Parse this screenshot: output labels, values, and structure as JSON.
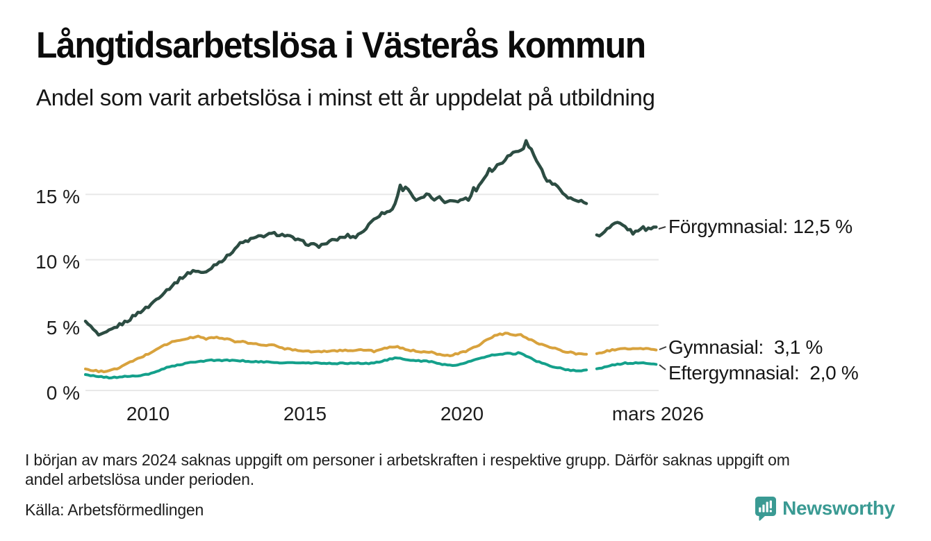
{
  "header": {
    "title": "Långtidsarbetslösa i Västerås kommun",
    "subtitle": "Andel som varit arbetslösa i minst ett år uppdelat på utbildning"
  },
  "chart_data": {
    "type": "line",
    "title": "Långtidsarbetslösa i Västerås kommun",
    "subtitle": "Andel som varit arbetslösa i minst ett år uppdelat på utbildning",
    "unit": "%",
    "x_domain": [
      2008.0,
      2026.25
    ],
    "y_domain": [
      0,
      20
    ],
    "grid": true,
    "legend_position": "right-end-labels",
    "y_ticks": [
      {
        "value": 0,
        "label": "0 %"
      },
      {
        "value": 5,
        "label": "5 %"
      },
      {
        "value": 10,
        "label": "10 %"
      },
      {
        "value": 15,
        "label": "15 %"
      }
    ],
    "x_ticks": [
      {
        "value": 2010,
        "label": "2010"
      },
      {
        "value": 2015,
        "label": "2015"
      },
      {
        "value": 2020,
        "label": "2020"
      },
      {
        "value": 2026.17,
        "label": "mars 2026"
      }
    ],
    "data_gap": {
      "from": 2024.0,
      "to": 2024.28,
      "note": "uppgift saknas från början av mars 2024"
    },
    "series": [
      {
        "name": "Förgymnasial",
        "color": "#2c4c42",
        "last_value": 12.5,
        "value_label": "Förgymnasial: 12,5 %",
        "segments": [
          [
            [
              2008.0,
              5.3
            ],
            [
              2008.17,
              4.85
            ],
            [
              2008.45,
              4.15
            ],
            [
              2008.7,
              4.45
            ],
            [
              2009.0,
              4.9
            ],
            [
              2009.35,
              5.35
            ],
            [
              2009.65,
              5.9
            ],
            [
              2010.0,
              6.4
            ],
            [
              2010.4,
              7.3
            ],
            [
              2010.75,
              8.0
            ],
            [
              2011.1,
              8.7
            ],
            [
              2011.45,
              9.2
            ],
            [
              2011.8,
              8.95
            ],
            [
              2012.15,
              9.7
            ],
            [
              2012.45,
              10.1
            ],
            [
              2012.9,
              11.2
            ],
            [
              2013.25,
              11.55
            ],
            [
              2013.6,
              11.8
            ],
            [
              2014.0,
              12.0
            ],
            [
              2014.4,
              11.85
            ],
            [
              2014.75,
              11.5
            ],
            [
              2015.1,
              11.2
            ],
            [
              2015.45,
              11.05
            ],
            [
              2015.8,
              11.4
            ],
            [
              2016.05,
              11.6
            ],
            [
              2016.35,
              11.85
            ],
            [
              2016.55,
              11.7
            ],
            [
              2016.9,
              12.3
            ],
            [
              2017.2,
              13.2
            ],
            [
              2017.5,
              13.6
            ],
            [
              2017.75,
              13.75
            ],
            [
              2017.92,
              14.7
            ],
            [
              2018.0,
              15.7
            ],
            [
              2018.12,
              15.35
            ],
            [
              2018.25,
              15.6
            ],
            [
              2018.42,
              14.85
            ],
            [
              2018.55,
              14.5
            ],
            [
              2018.72,
              14.7
            ],
            [
              2018.88,
              15.0
            ],
            [
              2019.0,
              14.75
            ],
            [
              2019.15,
              14.6
            ],
            [
              2019.3,
              14.75
            ],
            [
              2019.45,
              14.4
            ],
            [
              2019.6,
              14.65
            ],
            [
              2019.75,
              14.4
            ],
            [
              2019.9,
              14.5
            ],
            [
              2020.05,
              14.75
            ],
            [
              2020.15,
              14.55
            ],
            [
              2020.28,
              14.9
            ],
            [
              2020.35,
              15.55
            ],
            [
              2020.44,
              15.3
            ],
            [
              2020.52,
              15.7
            ],
            [
              2020.62,
              16.0
            ],
            [
              2020.72,
              16.35
            ],
            [
              2020.85,
              16.95
            ],
            [
              2020.95,
              16.8
            ],
            [
              2021.1,
              17.2
            ],
            [
              2021.25,
              17.45
            ],
            [
              2021.4,
              17.8
            ],
            [
              2021.55,
              18.1
            ],
            [
              2021.7,
              18.3
            ],
            [
              2021.85,
              18.45
            ],
            [
              2021.95,
              18.6
            ],
            [
              2022.02,
              19.1
            ],
            [
              2022.1,
              18.7
            ],
            [
              2022.2,
              18.4
            ],
            [
              2022.3,
              17.9
            ],
            [
              2022.42,
              17.35
            ],
            [
              2022.52,
              16.9
            ],
            [
              2022.65,
              16.2
            ],
            [
              2022.8,
              15.9
            ],
            [
              2022.95,
              15.7
            ],
            [
              2023.05,
              15.6
            ],
            [
              2023.15,
              15.4
            ],
            [
              2023.27,
              14.9
            ],
            [
              2023.4,
              14.7
            ],
            [
              2023.55,
              14.6
            ],
            [
              2023.7,
              14.5
            ],
            [
              2023.85,
              14.4
            ],
            [
              2023.95,
              14.3
            ]
          ],
          [
            [
              2024.28,
              11.9
            ],
            [
              2024.4,
              11.78
            ],
            [
              2024.6,
              12.3
            ],
            [
              2024.92,
              12.8
            ],
            [
              2025.19,
              12.5
            ],
            [
              2025.46,
              12.0
            ],
            [
              2025.7,
              12.5
            ],
            [
              2025.85,
              12.3
            ],
            [
              2026.05,
              12.5
            ],
            [
              2026.17,
              12.5
            ]
          ]
        ]
      },
      {
        "name": "Gymnasial",
        "color": "#d8a23d",
        "last_value": 3.1,
        "value_label": "Gymnasial:  3,1 %",
        "segments": [
          [
            [
              2008.0,
              1.65
            ],
            [
              2008.2,
              1.55
            ],
            [
              2008.45,
              1.45
            ],
            [
              2008.7,
              1.5
            ],
            [
              2009.0,
              1.65
            ],
            [
              2009.2,
              1.9
            ],
            [
              2009.55,
              2.3
            ],
            [
              2010.0,
              2.8
            ],
            [
              2010.4,
              3.35
            ],
            [
              2010.75,
              3.7
            ],
            [
              2011.1,
              3.9
            ],
            [
              2011.4,
              4.05
            ],
            [
              2011.55,
              4.15
            ],
            [
              2011.85,
              3.95
            ],
            [
              2012.15,
              4.1
            ],
            [
              2012.4,
              3.9
            ],
            [
              2012.55,
              4.0
            ],
            [
              2012.75,
              3.7
            ],
            [
              2012.95,
              3.75
            ],
            [
              2013.25,
              3.6
            ],
            [
              2013.6,
              3.5
            ],
            [
              2014.0,
              3.45
            ],
            [
              2014.35,
              3.2
            ],
            [
              2014.75,
              3.1
            ],
            [
              2015.1,
              3.0
            ],
            [
              2015.5,
              2.95
            ],
            [
              2015.85,
              3.05
            ],
            [
              2016.2,
              3.05
            ],
            [
              2016.6,
              3.1
            ],
            [
              2017.0,
              3.08
            ],
            [
              2017.2,
              3.0
            ],
            [
              2017.45,
              3.15
            ],
            [
              2017.7,
              3.3
            ],
            [
              2017.9,
              3.35
            ],
            [
              2018.1,
              3.2
            ],
            [
              2018.33,
              3.08
            ],
            [
              2018.55,
              3.0
            ],
            [
              2018.77,
              2.97
            ],
            [
              2019.0,
              2.97
            ],
            [
              2019.2,
              2.77
            ],
            [
              2019.45,
              2.65
            ],
            [
              2019.65,
              2.7
            ],
            [
              2019.9,
              2.85
            ],
            [
              2020.1,
              2.97
            ],
            [
              2020.3,
              3.2
            ],
            [
              2020.55,
              3.5
            ],
            [
              2020.77,
              3.87
            ],
            [
              2021.0,
              4.15
            ],
            [
              2021.2,
              4.3
            ],
            [
              2021.45,
              4.35
            ],
            [
              2021.65,
              4.2
            ],
            [
              2021.87,
              4.25
            ],
            [
              2022.1,
              3.97
            ],
            [
              2022.32,
              3.7
            ],
            [
              2022.55,
              3.5
            ],
            [
              2022.77,
              3.35
            ],
            [
              2023.0,
              3.2
            ],
            [
              2023.2,
              3.0
            ],
            [
              2023.45,
              2.9
            ],
            [
              2023.65,
              2.8
            ],
            [
              2023.95,
              2.77
            ]
          ],
          [
            [
              2024.28,
              2.82
            ],
            [
              2024.53,
              2.97
            ],
            [
              2024.75,
              3.08
            ],
            [
              2024.97,
              3.2
            ],
            [
              2025.2,
              3.17
            ],
            [
              2025.4,
              3.2
            ],
            [
              2025.65,
              3.17
            ],
            [
              2025.85,
              3.2
            ],
            [
              2026.05,
              3.15
            ],
            [
              2026.17,
              3.1
            ]
          ]
        ]
      },
      {
        "name": "Eftergymnasial",
        "color": "#14a08b",
        "last_value": 2.0,
        "value_label": "Eftergymnasial:  2,0 %",
        "segments": [
          [
            [
              2008.0,
              1.22
            ],
            [
              2008.4,
              1.06
            ],
            [
              2008.8,
              0.97
            ],
            [
              2009.2,
              1.06
            ],
            [
              2009.55,
              1.11
            ],
            [
              2010.0,
              1.22
            ],
            [
              2010.4,
              1.59
            ],
            [
              2010.75,
              1.86
            ],
            [
              2011.1,
              2.0
            ],
            [
              2011.4,
              2.18
            ],
            [
              2011.8,
              2.28
            ],
            [
              2012.15,
              2.33
            ],
            [
              2012.5,
              2.3
            ],
            [
              2012.9,
              2.28
            ],
            [
              2013.6,
              2.18
            ],
            [
              2014.35,
              2.12
            ],
            [
              2015.1,
              2.1
            ],
            [
              2015.8,
              2.07
            ],
            [
              2016.3,
              2.08
            ],
            [
              2016.6,
              2.1
            ],
            [
              2017.0,
              2.05
            ],
            [
              2017.25,
              2.15
            ],
            [
              2017.45,
              2.25
            ],
            [
              2017.7,
              2.4
            ],
            [
              2017.9,
              2.48
            ],
            [
              2018.05,
              2.42
            ],
            [
              2018.33,
              2.32
            ],
            [
              2018.55,
              2.3
            ],
            [
              2018.77,
              2.24
            ],
            [
              2019.0,
              2.2
            ],
            [
              2019.2,
              2.1
            ],
            [
              2019.45,
              1.97
            ],
            [
              2019.65,
              1.92
            ],
            [
              2019.9,
              2.0
            ],
            [
              2020.1,
              2.1
            ],
            [
              2020.3,
              2.28
            ],
            [
              2020.55,
              2.44
            ],
            [
              2020.77,
              2.6
            ],
            [
              2021.0,
              2.72
            ],
            [
              2021.2,
              2.8
            ],
            [
              2021.45,
              2.83
            ],
            [
              2021.65,
              2.8
            ],
            [
              2021.8,
              2.88
            ],
            [
              2022.0,
              2.7
            ],
            [
              2022.1,
              2.55
            ],
            [
              2022.32,
              2.28
            ],
            [
              2022.55,
              2.07
            ],
            [
              2022.77,
              1.92
            ],
            [
              2023.0,
              1.75
            ],
            [
              2023.2,
              1.66
            ],
            [
              2023.45,
              1.55
            ],
            [
              2023.65,
              1.5
            ],
            [
              2023.85,
              1.55
            ],
            [
              2023.95,
              1.57
            ]
          ],
          [
            [
              2024.28,
              1.66
            ],
            [
              2024.53,
              1.78
            ],
            [
              2024.75,
              1.92
            ],
            [
              2024.97,
              2.0
            ],
            [
              2025.2,
              2.1
            ],
            [
              2025.4,
              2.07
            ],
            [
              2025.65,
              2.12
            ],
            [
              2025.85,
              2.1
            ],
            [
              2026.05,
              2.05
            ],
            [
              2026.17,
              2.0
            ]
          ]
        ]
      }
    ]
  },
  "footnote": {
    "line1": "I början av mars 2024 saknas uppgift om personer i arbetskraften i respektive grupp. Därför saknas uppgift om",
    "line2": "andel arbetslösa under perioden."
  },
  "source": {
    "text": "Källa: Arbetsförmedlingen"
  },
  "branding": {
    "wordmark": "Newsworthy",
    "color": "#3a9a93",
    "icon": "newsworthy-bubble-chart-icon"
  }
}
